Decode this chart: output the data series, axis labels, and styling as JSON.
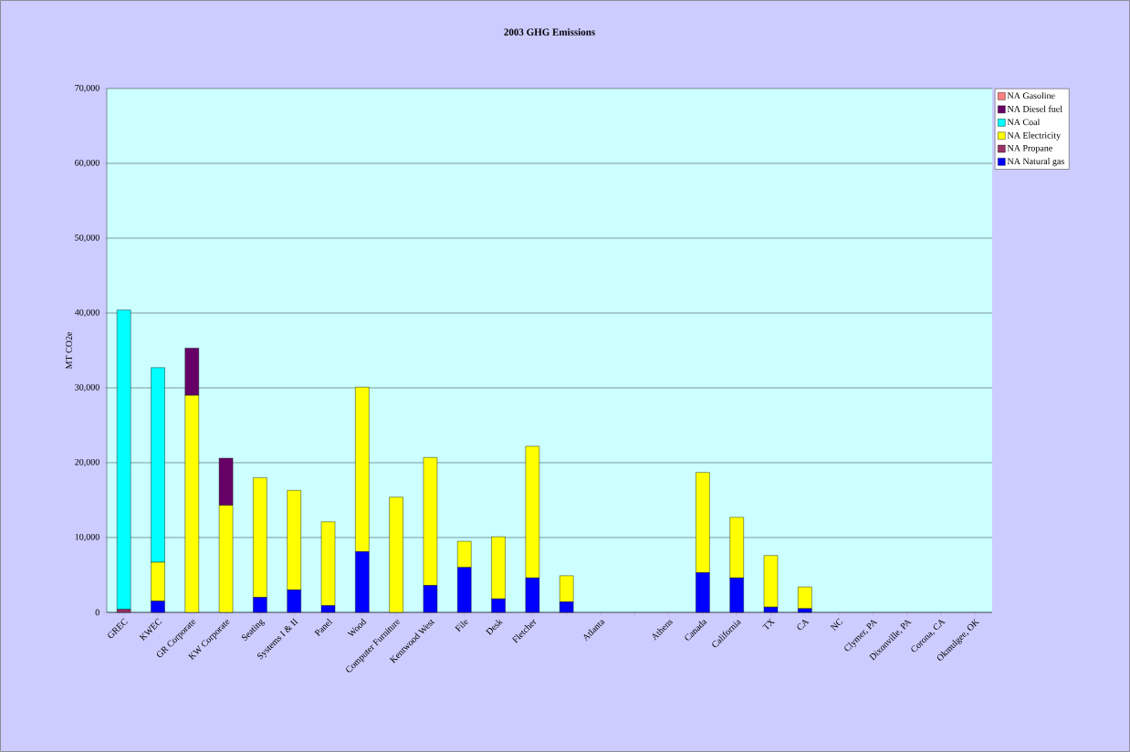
{
  "chart_data": {
    "type": "bar",
    "title": "2003 GHG Emissions",
    "ylabel": "MT CO2e",
    "stacked": true,
    "grid": "y",
    "legend": "right",
    "categories": [
      "GREC",
      "KWEC",
      "GR Corporate",
      "KW Corporate",
      "Seating",
      "Systems I & II",
      "Panel",
      "Wood",
      "Computer Furniture",
      "Kentwood West",
      "File",
      "Desk",
      "Fletcher",
      null,
      "Atlanta",
      null,
      "Athens",
      "Canada",
      "California",
      "TX",
      "CA",
      "NC",
      "Clymer, PA",
      "Dixonville, PA",
      "Corona, CA",
      "Okmulgee, OK"
    ],
    "ylim": [
      0,
      70000
    ],
    "yticks": [
      0,
      {
        "value": 10000,
        "label": "10,000"
      },
      {
        "value": 20000,
        "label": "20,000"
      },
      {
        "value": 30000,
        "label": "30,000"
      },
      {
        "value": 40000,
        "label": "40,000"
      },
      {
        "value": 50000,
        "label": "50,000"
      },
      {
        "value": 60000,
        "label": "60,000"
      },
      {
        "value": 70000,
        "label": "70,000"
      }
    ],
    "series": [
      {
        "name": "NA Natural gas",
        "color": "#0000ff",
        "values": [
          0,
          1500,
          0,
          0,
          2000,
          3000,
          900,
          8100,
          0,
          3600,
          6000,
          1800,
          4600,
          1400,
          0,
          0,
          0,
          5300,
          4600,
          700,
          500,
          0,
          0,
          0,
          0,
          0
        ]
      },
      {
        "name": "NA Propane",
        "color": "#993366",
        "values": [
          400,
          0,
          0,
          0,
          0,
          0,
          0,
          0,
          0,
          0,
          0,
          0,
          0,
          0,
          0,
          0,
          0,
          0,
          0,
          0,
          0,
          0,
          0,
          0,
          0,
          0
        ]
      },
      {
        "name": "NA Electricity",
        "color": "#ffff00",
        "values": [
          0,
          5200,
          29000,
          14300,
          16000,
          13300,
          11200,
          22000,
          15400,
          17100,
          3500,
          8300,
          17600,
          3500,
          0,
          0,
          0,
          13400,
          8100,
          6900,
          2900,
          0,
          0,
          0,
          0,
          0
        ]
      },
      {
        "name": "NA Coal",
        "color": "#00ffff",
        "values": [
          40000,
          26000,
          0,
          0,
          0,
          0,
          0,
          0,
          0,
          0,
          0,
          0,
          0,
          0,
          0,
          0,
          0,
          0,
          0,
          0,
          0,
          0,
          0,
          0,
          0,
          0
        ]
      },
      {
        "name": "NA Diesel fuel",
        "color": "#660066",
        "values": [
          0,
          0,
          6300,
          6300,
          0,
          0,
          0,
          0,
          0,
          0,
          0,
          0,
          0,
          0,
          0,
          0,
          0,
          0,
          0,
          0,
          0,
          0,
          0,
          0,
          0,
          0
        ]
      },
      {
        "name": "NA Gasoline",
        "color": "#ff8080",
        "values": [
          0,
          0,
          0,
          0,
          0,
          0,
          0,
          0,
          0,
          0,
          0,
          0,
          0,
          0,
          0,
          0,
          0,
          0,
          0,
          0,
          0,
          0,
          0,
          0,
          0,
          0
        ]
      }
    ]
  }
}
